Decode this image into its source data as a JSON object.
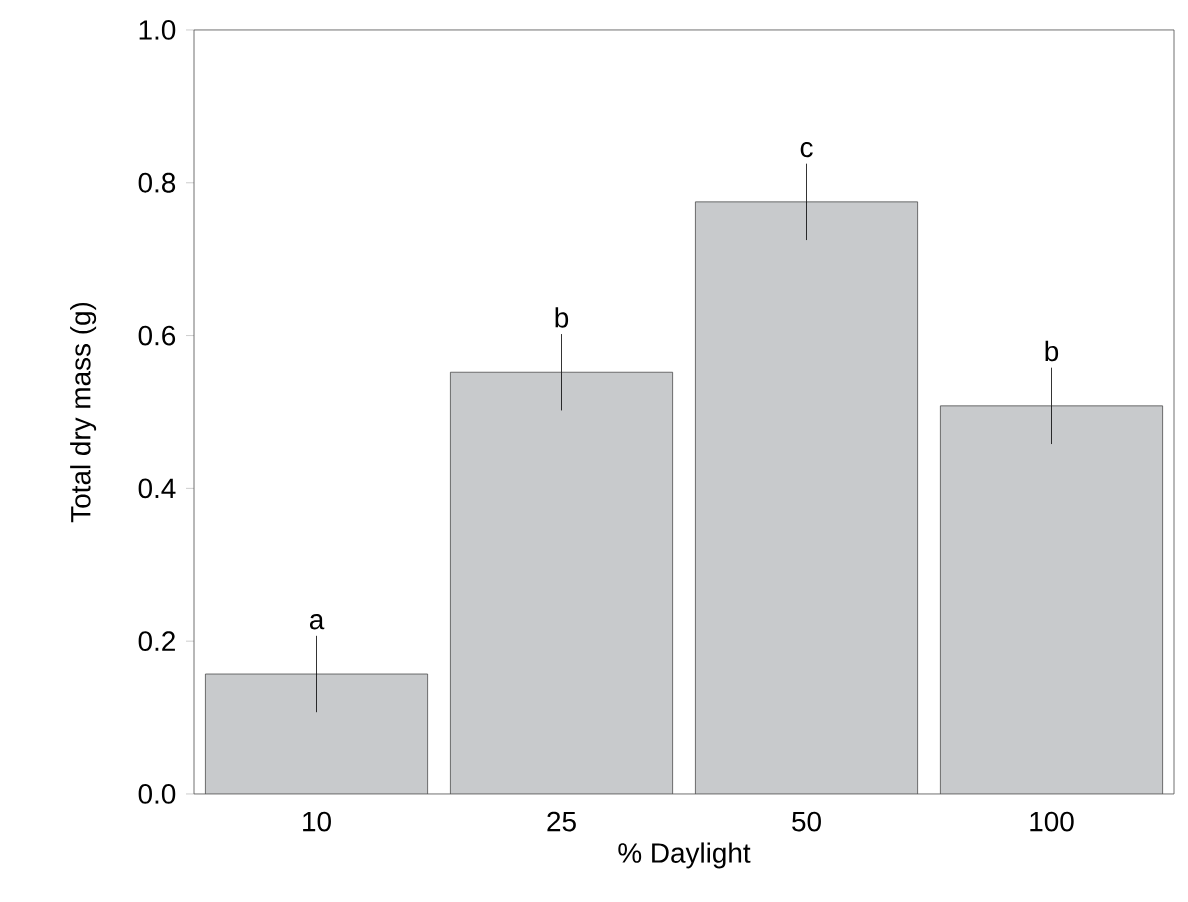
{
  "chart_data": {
    "type": "bar",
    "xlabel": "% Daylight",
    "ylabel": "Total dry mass (g)",
    "categories": [
      "10",
      "25",
      "50",
      "100"
    ],
    "values": [
      0.157,
      0.552,
      0.775,
      0.508
    ],
    "errors": [
      0.05,
      0.05,
      0.05,
      0.05
    ],
    "color": "#c8cacc",
    "ylim": [
      0,
      1.0
    ],
    "yticks": [
      {
        "value": 0,
        "label": "0.0"
      },
      {
        "value": 0.2,
        "label": "0.2"
      },
      {
        "value": 0.4,
        "label": "0.4"
      },
      {
        "value": 0.6,
        "label": "0.6"
      },
      {
        "value": 0.8,
        "label": "0.8"
      },
      {
        "value": 1.0,
        "label": "1.0"
      }
    ],
    "annotations": [
      {
        "text": "a",
        "x": "10",
        "y": 0.207
      },
      {
        "text": "b",
        "x": "25",
        "y": 0.602
      },
      {
        "text": "c",
        "x": "50",
        "y": 0.825
      },
      {
        "text": "b",
        "x": "100",
        "y": 0.558
      }
    ]
  }
}
